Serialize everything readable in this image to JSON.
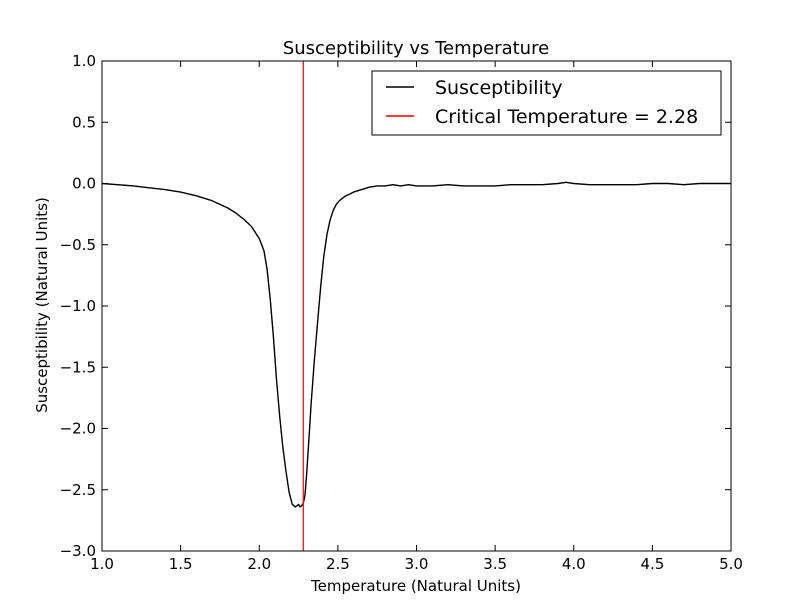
{
  "chart_data": {
    "type": "line",
    "title": "Susceptibility vs Temperature",
    "xlabel": "Temperature (Natural Units)",
    "ylabel": "Susceptibility (Natural Units)",
    "xlim": [
      1.0,
      5.0
    ],
    "ylim": [
      -3.0,
      1.0
    ],
    "x_ticks": [
      1.0,
      1.5,
      2.0,
      2.5,
      3.0,
      3.5,
      4.0,
      4.5,
      5.0
    ],
    "x_tick_labels": [
      "1.0",
      "1.5",
      "2.0",
      "2.5",
      "3.0",
      "3.5",
      "4.0",
      "4.5",
      "5.0"
    ],
    "y_ticks": [
      1.0,
      0.5,
      0.0,
      -0.5,
      -1.0,
      -1.5,
      -2.0,
      -2.5,
      -3.0
    ],
    "y_tick_labels": [
      "1.0",
      "0.5",
      "0.0",
      "−0.5",
      "−1.0",
      "−1.5",
      "−2.0",
      "−2.5",
      "−3.0"
    ],
    "grid": false,
    "legend_position": "top-right",
    "series": [
      {
        "name": "Susceptibility",
        "color": "#000000",
        "x": [
          1.0,
          1.1,
          1.2,
          1.3,
          1.4,
          1.5,
          1.6,
          1.7,
          1.8,
          1.85,
          1.9,
          1.95,
          2.0,
          2.03,
          2.05,
          2.07,
          2.09,
          2.11,
          2.13,
          2.15,
          2.17,
          2.19,
          2.21,
          2.23,
          2.25,
          2.26,
          2.27,
          2.28,
          2.29,
          2.3,
          2.31,
          2.32,
          2.33,
          2.35,
          2.37,
          2.39,
          2.41,
          2.43,
          2.45,
          2.47,
          2.49,
          2.51,
          2.53,
          2.55,
          2.57,
          2.6,
          2.65,
          2.7,
          2.75,
          2.8,
          2.85,
          2.9,
          2.95,
          3.0,
          3.1,
          3.2,
          3.3,
          3.4,
          3.5,
          3.6,
          3.7,
          3.8,
          3.9,
          3.95,
          4.0,
          4.1,
          4.2,
          4.3,
          4.4,
          4.5,
          4.6,
          4.7,
          4.8,
          4.9,
          5.0
        ],
        "y": [
          0.0,
          -0.01,
          -0.02,
          -0.035,
          -0.05,
          -0.07,
          -0.1,
          -0.14,
          -0.2,
          -0.24,
          -0.29,
          -0.35,
          -0.45,
          -0.55,
          -0.7,
          -0.95,
          -1.25,
          -1.6,
          -1.9,
          -2.15,
          -2.35,
          -2.52,
          -2.62,
          -2.64,
          -2.62,
          -2.64,
          -2.63,
          -2.61,
          -2.55,
          -2.4,
          -2.2,
          -2.0,
          -1.8,
          -1.45,
          -1.15,
          -0.85,
          -0.6,
          -0.42,
          -0.3,
          -0.22,
          -0.17,
          -0.14,
          -0.12,
          -0.1,
          -0.09,
          -0.07,
          -0.05,
          -0.03,
          -0.02,
          -0.02,
          -0.01,
          -0.02,
          -0.01,
          -0.02,
          -0.02,
          -0.01,
          -0.02,
          -0.02,
          -0.02,
          -0.01,
          -0.01,
          -0.01,
          0.0,
          0.01,
          0.0,
          -0.01,
          -0.01,
          -0.01,
          -0.01,
          0.0,
          0.0,
          -0.01,
          0.0,
          0.0,
          0.0
        ]
      },
      {
        "name": "Critical Temperature = 2.28",
        "color": "#ff0000",
        "type": "vline",
        "x": 2.28
      }
    ]
  }
}
